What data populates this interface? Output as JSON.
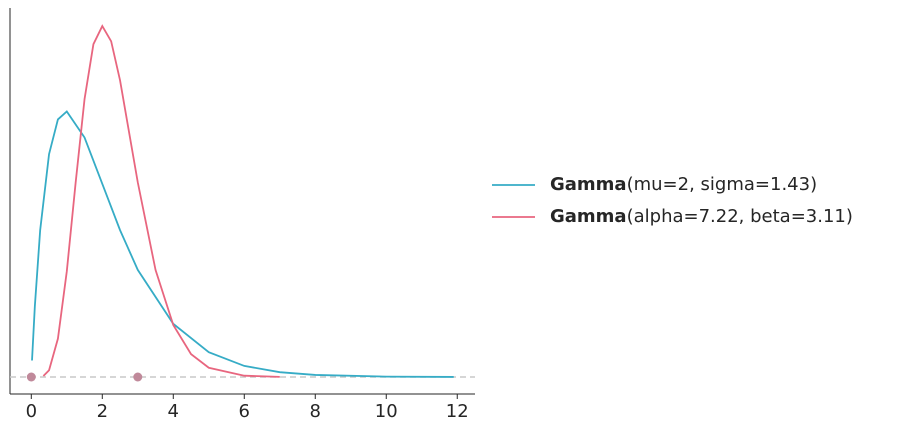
{
  "chart_data": {
    "type": "line",
    "series": [
      {
        "name": [
          "Gamma",
          "(mu=2, sigma=1.43)"
        ],
        "color": "#36acc6",
        "x": [
          0.02,
          0.1,
          0.25,
          0.5,
          0.75,
          1,
          1.5,
          2,
          2.5,
          3,
          4,
          5,
          6,
          7,
          8,
          10,
          11.9
        ],
        "values": [
          0.0228,
          0.0979,
          0.203,
          0.308,
          0.356,
          0.367,
          0.331,
          0.267,
          0.203,
          0.148,
          0.0734,
          0.0342,
          0.0153,
          0.00667,
          0.00285,
          0.0005,
          0.0001
        ]
      },
      {
        "name": [
          "Gamma",
          "(alpha=7.22, beta=3.11)"
        ],
        "color": "#e8667f",
        "x": [
          0.34,
          0.5,
          0.75,
          1,
          1.25,
          1.5,
          1.75,
          2,
          2.25,
          2.5,
          3,
          3.5,
          4,
          4.5,
          5,
          6,
          7
        ],
        "values": [
          0.00138,
          0.00928,
          0.053,
          0.146,
          0.269,
          0.384,
          0.46,
          0.485,
          0.464,
          0.41,
          0.269,
          0.148,
          0.0719,
          0.0316,
          0.0128,
          0.00178,
          0.000207
        ]
      }
    ],
    "points": {
      "x": [
        0,
        3
      ],
      "color": "#c0899a"
    },
    "xlim": [
      -0.6,
      12.5
    ],
    "xticks": [
      0,
      2,
      4,
      6,
      8,
      10,
      12
    ],
    "ylim": [
      -0.0235,
      0.51
    ],
    "grid": false,
    "legend": "right"
  }
}
